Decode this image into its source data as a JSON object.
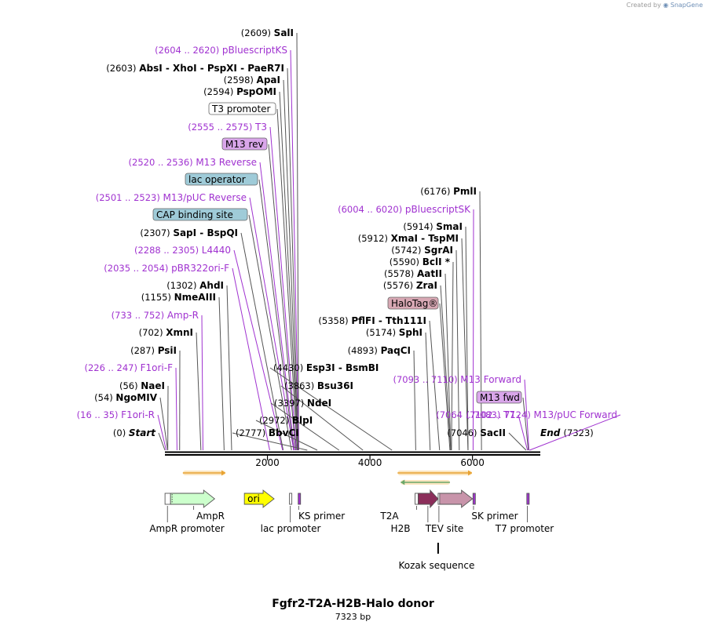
{
  "header": {
    "created_by": "Created by",
    "brand": "SnapGene"
  },
  "map": {
    "name": "Fgfr2-T2A-H2B-Halo donor",
    "length_label": "7323 bp",
    "total_bp": 7323,
    "ruler_ticks": [
      {
        "bp": 2000,
        "label": "2000"
      },
      {
        "bp": 4000,
        "label": "4000"
      },
      {
        "bp": 6000,
        "label": "6000"
      }
    ],
    "start_label": "Start",
    "start_pos": "(0)",
    "end_label": "End",
    "end_pos": "(7323)"
  },
  "left_labels": [
    {
      "kind": "enzyme",
      "pos": "(2609)",
      "name": "SalI",
      "bp": 2609
    },
    {
      "kind": "primer",
      "pos": "(2604 .. 2620)",
      "name": "pBluescriptKS",
      "bp": 2612
    },
    {
      "kind": "enzyme",
      "pos": "(2603)",
      "name": "AbsI  - XhoI  - PspXI  - PaeR7I",
      "bp": 2603
    },
    {
      "kind": "enzyme",
      "pos": "(2598)",
      "name": "ApaI",
      "bp": 2598
    },
    {
      "kind": "enzyme",
      "pos": "(2594)",
      "name": "PspOMI",
      "bp": 2594
    },
    {
      "kind": "feature",
      "name": "T3 promoter",
      "bp": 2580,
      "fill": "#ffffff"
    },
    {
      "kind": "primer",
      "pos": "(2555 .. 2575)",
      "name": "T3",
      "bp": 2565
    },
    {
      "kind": "feature",
      "name": "M13 rev",
      "bp": 2550,
      "fill": "#d9a6ea"
    },
    {
      "kind": "primer",
      "pos": "(2520 .. 2536)",
      "name": "M13 Reverse",
      "bp": 2528
    },
    {
      "kind": "feature",
      "name": "lac operator",
      "bp": 2512,
      "fill": "#9fcbd8"
    },
    {
      "kind": "primer",
      "pos": "(2501 .. 2523)",
      "name": "M13/pUC Reverse",
      "bp": 2512
    },
    {
      "kind": "feature",
      "name": "CAP binding site",
      "bp": 2470,
      "fill": "#9fcbd8"
    },
    {
      "kind": "enzyme",
      "pos": "(2307)",
      "name": "SapI  - BspQI",
      "bp": 2307
    },
    {
      "kind": "primer",
      "pos": "(2288 .. 2305)",
      "name": "L4440",
      "bp": 2296
    },
    {
      "kind": "primer",
      "pos": "(2035 .. 2054)",
      "name": "pBR322ori-F",
      "bp": 2044
    },
    {
      "kind": "enzyme",
      "pos": "(1302)",
      "name": "AhdI",
      "bp": 1302
    },
    {
      "kind": "enzyme",
      "pos": "(1155)",
      "name": "NmeAIII",
      "bp": 1155
    },
    {
      "kind": "primer",
      "pos": "(733 .. 752)",
      "name": "Amp-R",
      "bp": 742
    },
    {
      "kind": "enzyme",
      "pos": "(702)",
      "name": "XmnI",
      "bp": 702
    },
    {
      "kind": "enzyme",
      "pos": "(287)",
      "name": "PsiI",
      "bp": 287
    },
    {
      "kind": "primer",
      "pos": "(226 .. 247)",
      "name": "F1ori-F",
      "bp": 236
    },
    {
      "kind": "enzyme",
      "pos": "(56)",
      "name": "NaeI",
      "bp": 56
    },
    {
      "kind": "enzyme",
      "pos": "(54)",
      "name": "NgoMIV",
      "bp": 54
    },
    {
      "kind": "primer",
      "pos": "(16 .. 35)",
      "name": "F1ori-R",
      "bp": 25
    }
  ],
  "center_labels": [
    {
      "kind": "enzyme",
      "pos": "(4430)",
      "name": "Esp3I  - BsmBI",
      "bp": 4430
    },
    {
      "kind": "enzyme",
      "pos": "(3863)",
      "name": "Bsu36I",
      "bp": 3863
    },
    {
      "kind": "enzyme",
      "pos": "(3397)",
      "name": "NdeI",
      "bp": 3397
    },
    {
      "kind": "enzyme",
      "pos": "(2972)",
      "name": "BlpI",
      "bp": 2972
    },
    {
      "kind": "enzyme",
      "pos": "(2777)",
      "name": "BbvCI",
      "bp": 2777
    }
  ],
  "right_labels": [
    {
      "kind": "enzyme",
      "pos": "(6176)",
      "name": "PmlI",
      "bp": 6176
    },
    {
      "kind": "primer",
      "pos": "(6004 .. 6020)",
      "name": "pBluescriptSK",
      "bp": 6012
    },
    {
      "kind": "enzyme",
      "pos": "(5914)",
      "name": "SmaI",
      "bp": 5914
    },
    {
      "kind": "enzyme",
      "pos": "(5912)",
      "name": "XmaI  - TspMI",
      "bp": 5912
    },
    {
      "kind": "enzyme",
      "pos": "(5742)",
      "name": "SgrAI",
      "bp": 5742
    },
    {
      "kind": "enzyme",
      "pos": "(5590)",
      "name": "BclI *",
      "bp": 5590
    },
    {
      "kind": "enzyme",
      "pos": "(5578)",
      "name": "AatII",
      "bp": 5578
    },
    {
      "kind": "enzyme",
      "pos": "(5576)",
      "name": "ZraI",
      "bp": 5576
    },
    {
      "kind": "feature",
      "name": "HaloTag®",
      "bp": 5560,
      "fill": "#d8a8b4"
    },
    {
      "kind": "enzyme",
      "pos": "(5358)",
      "name": "PflFI  - Tth111I",
      "bp": 5358
    },
    {
      "kind": "enzyme",
      "pos": "(5174)",
      "name": "SphI",
      "bp": 5174
    },
    {
      "kind": "enzyme",
      "pos": "(4893)",
      "name": "PaqCI",
      "bp": 4893
    },
    {
      "kind": "primer",
      "pos": "(7093 .. 7110)",
      "name": "M13 Forward",
      "bp": 7101
    },
    {
      "kind": "feature",
      "name": "M13 fwd",
      "bp": 7090,
      "fill": "#d9a6ea"
    },
    {
      "kind": "primer",
      "pos": "(7064 .. 7083)",
      "name": "T7",
      "bp": 7073
    },
    {
      "kind": "primer",
      "pos": "(7102 .. 7124)",
      "name": "M13/pUC Forward",
      "bp": 7113
    },
    {
      "kind": "enzyme",
      "pos": "(7046)",
      "name": "SacII",
      "bp": 7046
    }
  ],
  "features": [
    {
      "name": "AmpR promoter",
      "label": "AmpR promoter",
      "start": 2,
      "end": 110,
      "color": "#ffffff",
      "shape": "box"
    },
    {
      "name": "AmpR",
      "label": "AmpR",
      "start": 110,
      "end": 970,
      "color": "#ccffcc",
      "shape": "arrow"
    },
    {
      "name": "ori",
      "label": "ori",
      "start": 1550,
      "end": 2130,
      "color": "#ffff00",
      "shape": "arrow"
    },
    {
      "name": "lac promoter",
      "label": "lac promoter",
      "start": 2430,
      "end": 2460,
      "color": "#ffffff",
      "shape": "box"
    },
    {
      "name": "KS primer",
      "label": "KS primer",
      "start": 2600,
      "end": 2620,
      "color": "#a032d0",
      "shape": "box"
    },
    {
      "name": "T2A",
      "label": "T2A",
      "start": 4880,
      "end": 4940,
      "color": "#ffffff",
      "shape": "box"
    },
    {
      "name": "H2B",
      "label": "H2B",
      "start": 4940,
      "end": 5330,
      "color": "#8b2e5a",
      "shape": "arrow"
    },
    {
      "name": "TEV site",
      "label": "TEV site",
      "start": 5330,
      "end": 5360,
      "color": "#ffffff",
      "shape": "box"
    },
    {
      "name": "HaloTag",
      "label": "",
      "start": 5360,
      "end": 6000,
      "color": "#c894aa",
      "shape": "arrow"
    },
    {
      "name": "SK primer",
      "label": "SK primer",
      "start": 6010,
      "end": 6030,
      "color": "#a032d0",
      "shape": "box"
    },
    {
      "name": "T7 promoter",
      "label": "T7 promoter",
      "start": 7060,
      "end": 7080,
      "color": "#a032d0",
      "shape": "box"
    }
  ],
  "sub_labels": [
    {
      "label": "Kozak sequence",
      "bp": 5330
    }
  ],
  "orfs": [
    {
      "start": 350,
      "end": 1180,
      "dir": "fwd",
      "color": "#e8a230"
    },
    {
      "start": 4540,
      "end": 5990,
      "dir": "fwd",
      "color": "#e8a230"
    },
    {
      "start": 4600,
      "end": 5560,
      "dir": "rev",
      "color": "#6aa86a"
    }
  ],
  "colors": {
    "enzyme": "#000000",
    "primer": "#a032d0",
    "backbone": "#000000"
  }
}
